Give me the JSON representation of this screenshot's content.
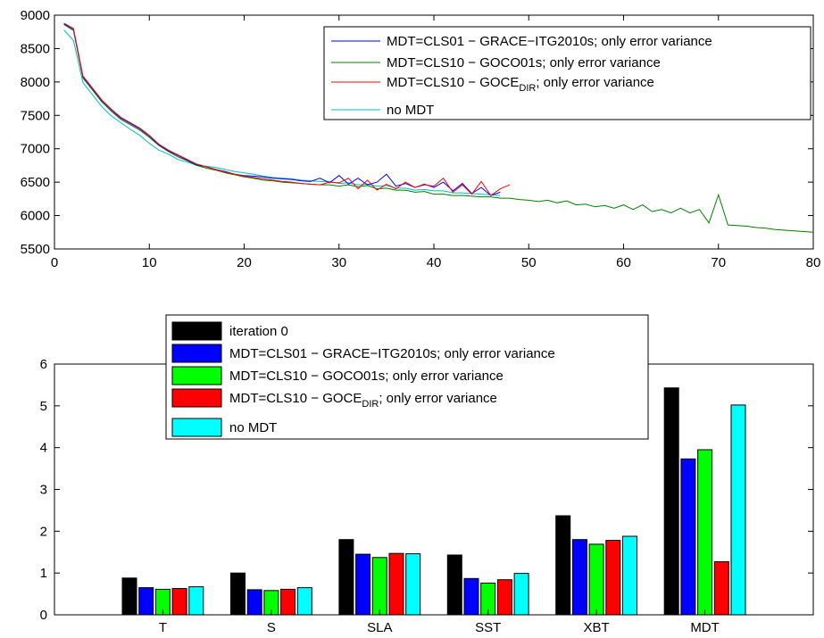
{
  "chart_data": [
    {
      "type": "line",
      "xlim": [
        0,
        80
      ],
      "ylim": [
        5500,
        9000
      ],
      "xticks": [
        0,
        10,
        20,
        30,
        40,
        50,
        60,
        70,
        80
      ],
      "yticks": [
        5500,
        6000,
        6500,
        7000,
        7500,
        8000,
        8500,
        9000
      ],
      "grid": false,
      "legend_position": "top-right",
      "series": [
        {
          "name": "MDT=CLS01 − GRACE−ITG2010s; only error variance",
          "color": "#0000ff",
          "x": [
            1,
            2,
            3,
            4,
            5,
            6,
            7,
            8,
            9,
            10,
            11,
            12,
            13,
            14,
            15,
            16,
            17,
            18,
            19,
            20,
            21,
            22,
            23,
            24,
            25,
            26,
            27,
            28,
            29,
            30,
            31,
            32,
            33,
            34,
            35,
            36,
            37,
            38,
            39,
            40,
            41,
            42,
            43,
            44,
            45,
            46,
            47
          ],
          "y": [
            8870,
            8790,
            8080,
            7900,
            7720,
            7580,
            7460,
            7380,
            7300,
            7190,
            7060,
            6970,
            6900,
            6830,
            6760,
            6730,
            6690,
            6660,
            6620,
            6600,
            6590,
            6580,
            6560,
            6550,
            6540,
            6520,
            6510,
            6560,
            6490,
            6600,
            6470,
            6560,
            6460,
            6500,
            6620,
            6440,
            6480,
            6420,
            6470,
            6420,
            6500,
            6370,
            6480,
            6330,
            6420,
            6300,
            6350
          ]
        },
        {
          "name": "MDT=CLS10 − GOCO01s; only error variance",
          "color": "#007f00",
          "x": [
            1,
            2,
            3,
            4,
            5,
            6,
            7,
            8,
            9,
            10,
            11,
            12,
            13,
            14,
            15,
            16,
            17,
            18,
            19,
            20,
            21,
            22,
            23,
            24,
            25,
            26,
            27,
            28,
            29,
            30,
            31,
            32,
            33,
            34,
            35,
            36,
            37,
            38,
            39,
            40,
            41,
            42,
            43,
            44,
            45,
            46,
            47,
            48,
            49,
            50,
            51,
            52,
            53,
            54,
            55,
            56,
            57,
            58,
            59,
            60,
            61,
            62,
            63,
            64,
            65,
            66,
            67,
            68,
            69,
            70,
            71,
            72,
            73,
            74,
            75,
            76,
            77,
            78,
            79,
            80
          ],
          "y": [
            8860,
            8770,
            8060,
            7880,
            7700,
            7560,
            7440,
            7360,
            7280,
            7170,
            7050,
            6960,
            6880,
            6820,
            6750,
            6710,
            6680,
            6640,
            6610,
            6580,
            6560,
            6530,
            6520,
            6500,
            6490,
            6480,
            6470,
            6460,
            6460,
            6440,
            6460,
            6430,
            6450,
            6400,
            6410,
            6380,
            6380,
            6350,
            6360,
            6320,
            6320,
            6300,
            6300,
            6290,
            6280,
            6280,
            6260,
            6260,
            6240,
            6230,
            6210,
            6230,
            6190,
            6220,
            6160,
            6170,
            6130,
            6150,
            6110,
            6160,
            6090,
            6160,
            6060,
            6090,
            6040,
            6110,
            6040,
            6090,
            5890,
            6310,
            5860,
            5850,
            5840,
            5820,
            5810,
            5790,
            5780,
            5770,
            5760,
            5750
          ]
        },
        {
          "name": "MDT=CLS10 − GOCE_DIR; only error variance",
          "color": "#ff0000",
          "x": [
            1,
            2,
            3,
            4,
            5,
            6,
            7,
            8,
            9,
            10,
            11,
            12,
            13,
            14,
            15,
            16,
            17,
            18,
            19,
            20,
            21,
            22,
            23,
            24,
            25,
            26,
            27,
            28,
            29,
            30,
            31,
            32,
            33,
            34,
            35,
            36,
            37,
            38,
            39,
            40,
            41,
            42,
            43,
            44,
            45,
            46,
            47,
            48
          ],
          "y": [
            8880,
            8800,
            8090,
            7910,
            7730,
            7590,
            7470,
            7390,
            7310,
            7200,
            7070,
            6980,
            6910,
            6840,
            6770,
            6730,
            6690,
            6650,
            6620,
            6590,
            6570,
            6550,
            6530,
            6510,
            6500,
            6480,
            6470,
            6460,
            6500,
            6490,
            6560,
            6400,
            6530,
            6380,
            6470,
            6400,
            6500,
            6420,
            6460,
            6440,
            6560,
            6350,
            6460,
            6320,
            6510,
            6300,
            6400,
            6460
          ]
        },
        {
          "name": "no MDT",
          "color": "#00bfbf",
          "x": [
            1,
            2,
            3,
            4,
            5,
            6,
            7,
            8,
            9,
            10,
            11,
            12,
            13,
            14,
            15,
            16,
            17,
            18,
            19,
            20,
            21,
            22,
            23,
            24,
            25,
            26,
            27,
            28,
            29,
            30,
            31,
            32,
            33,
            34,
            35,
            36,
            37,
            38,
            39,
            40,
            41,
            42,
            43,
            44,
            45,
            46,
            47
          ],
          "y": [
            8780,
            8620,
            7990,
            7810,
            7630,
            7490,
            7390,
            7290,
            7200,
            7080,
            6980,
            6920,
            6840,
            6800,
            6750,
            6740,
            6720,
            6690,
            6660,
            6640,
            6620,
            6590,
            6570,
            6560,
            6550,
            6530,
            6520,
            6510,
            6510,
            6480,
            6490,
            6460,
            6470,
            6440,
            6450,
            6410,
            6410,
            6380,
            6390,
            6370,
            6370,
            6340,
            6340,
            6330,
            6320,
            6310,
            6300
          ]
        }
      ]
    },
    {
      "type": "bar",
      "categories": [
        "T",
        "S",
        "SLA",
        "SST",
        "XBT",
        "MDT"
      ],
      "ylim": [
        0,
        6
      ],
      "yticks": [
        0,
        1,
        2,
        3,
        4,
        5,
        6
      ],
      "grid": false,
      "legend_position": "top-center",
      "series": [
        {
          "name": "iteration 0",
          "color": "#000000",
          "values": [
            0.88,
            1.0,
            1.8,
            1.43,
            2.37,
            5.43
          ]
        },
        {
          "name": "MDT=CLS01 − GRACE−ITG2010s; only error variance",
          "color": "#0000ff",
          "values": [
            0.65,
            0.6,
            1.45,
            0.87,
            1.8,
            3.73
          ]
        },
        {
          "name": "MDT=CLS10 − GOCO01s; only error variance",
          "color": "#00ff00",
          "values": [
            0.61,
            0.58,
            1.37,
            0.76,
            1.69,
            3.95
          ]
        },
        {
          "name": "MDT=CLS10 − GOCE_DIR; only error variance",
          "color": "#ff0000",
          "values": [
            0.63,
            0.61,
            1.47,
            0.84,
            1.78,
            1.27
          ]
        },
        {
          "name": "no MDT",
          "color": "#00ffff",
          "values": [
            0.67,
            0.65,
            1.46,
            0.99,
            1.88,
            5.02
          ]
        }
      ]
    }
  ]
}
